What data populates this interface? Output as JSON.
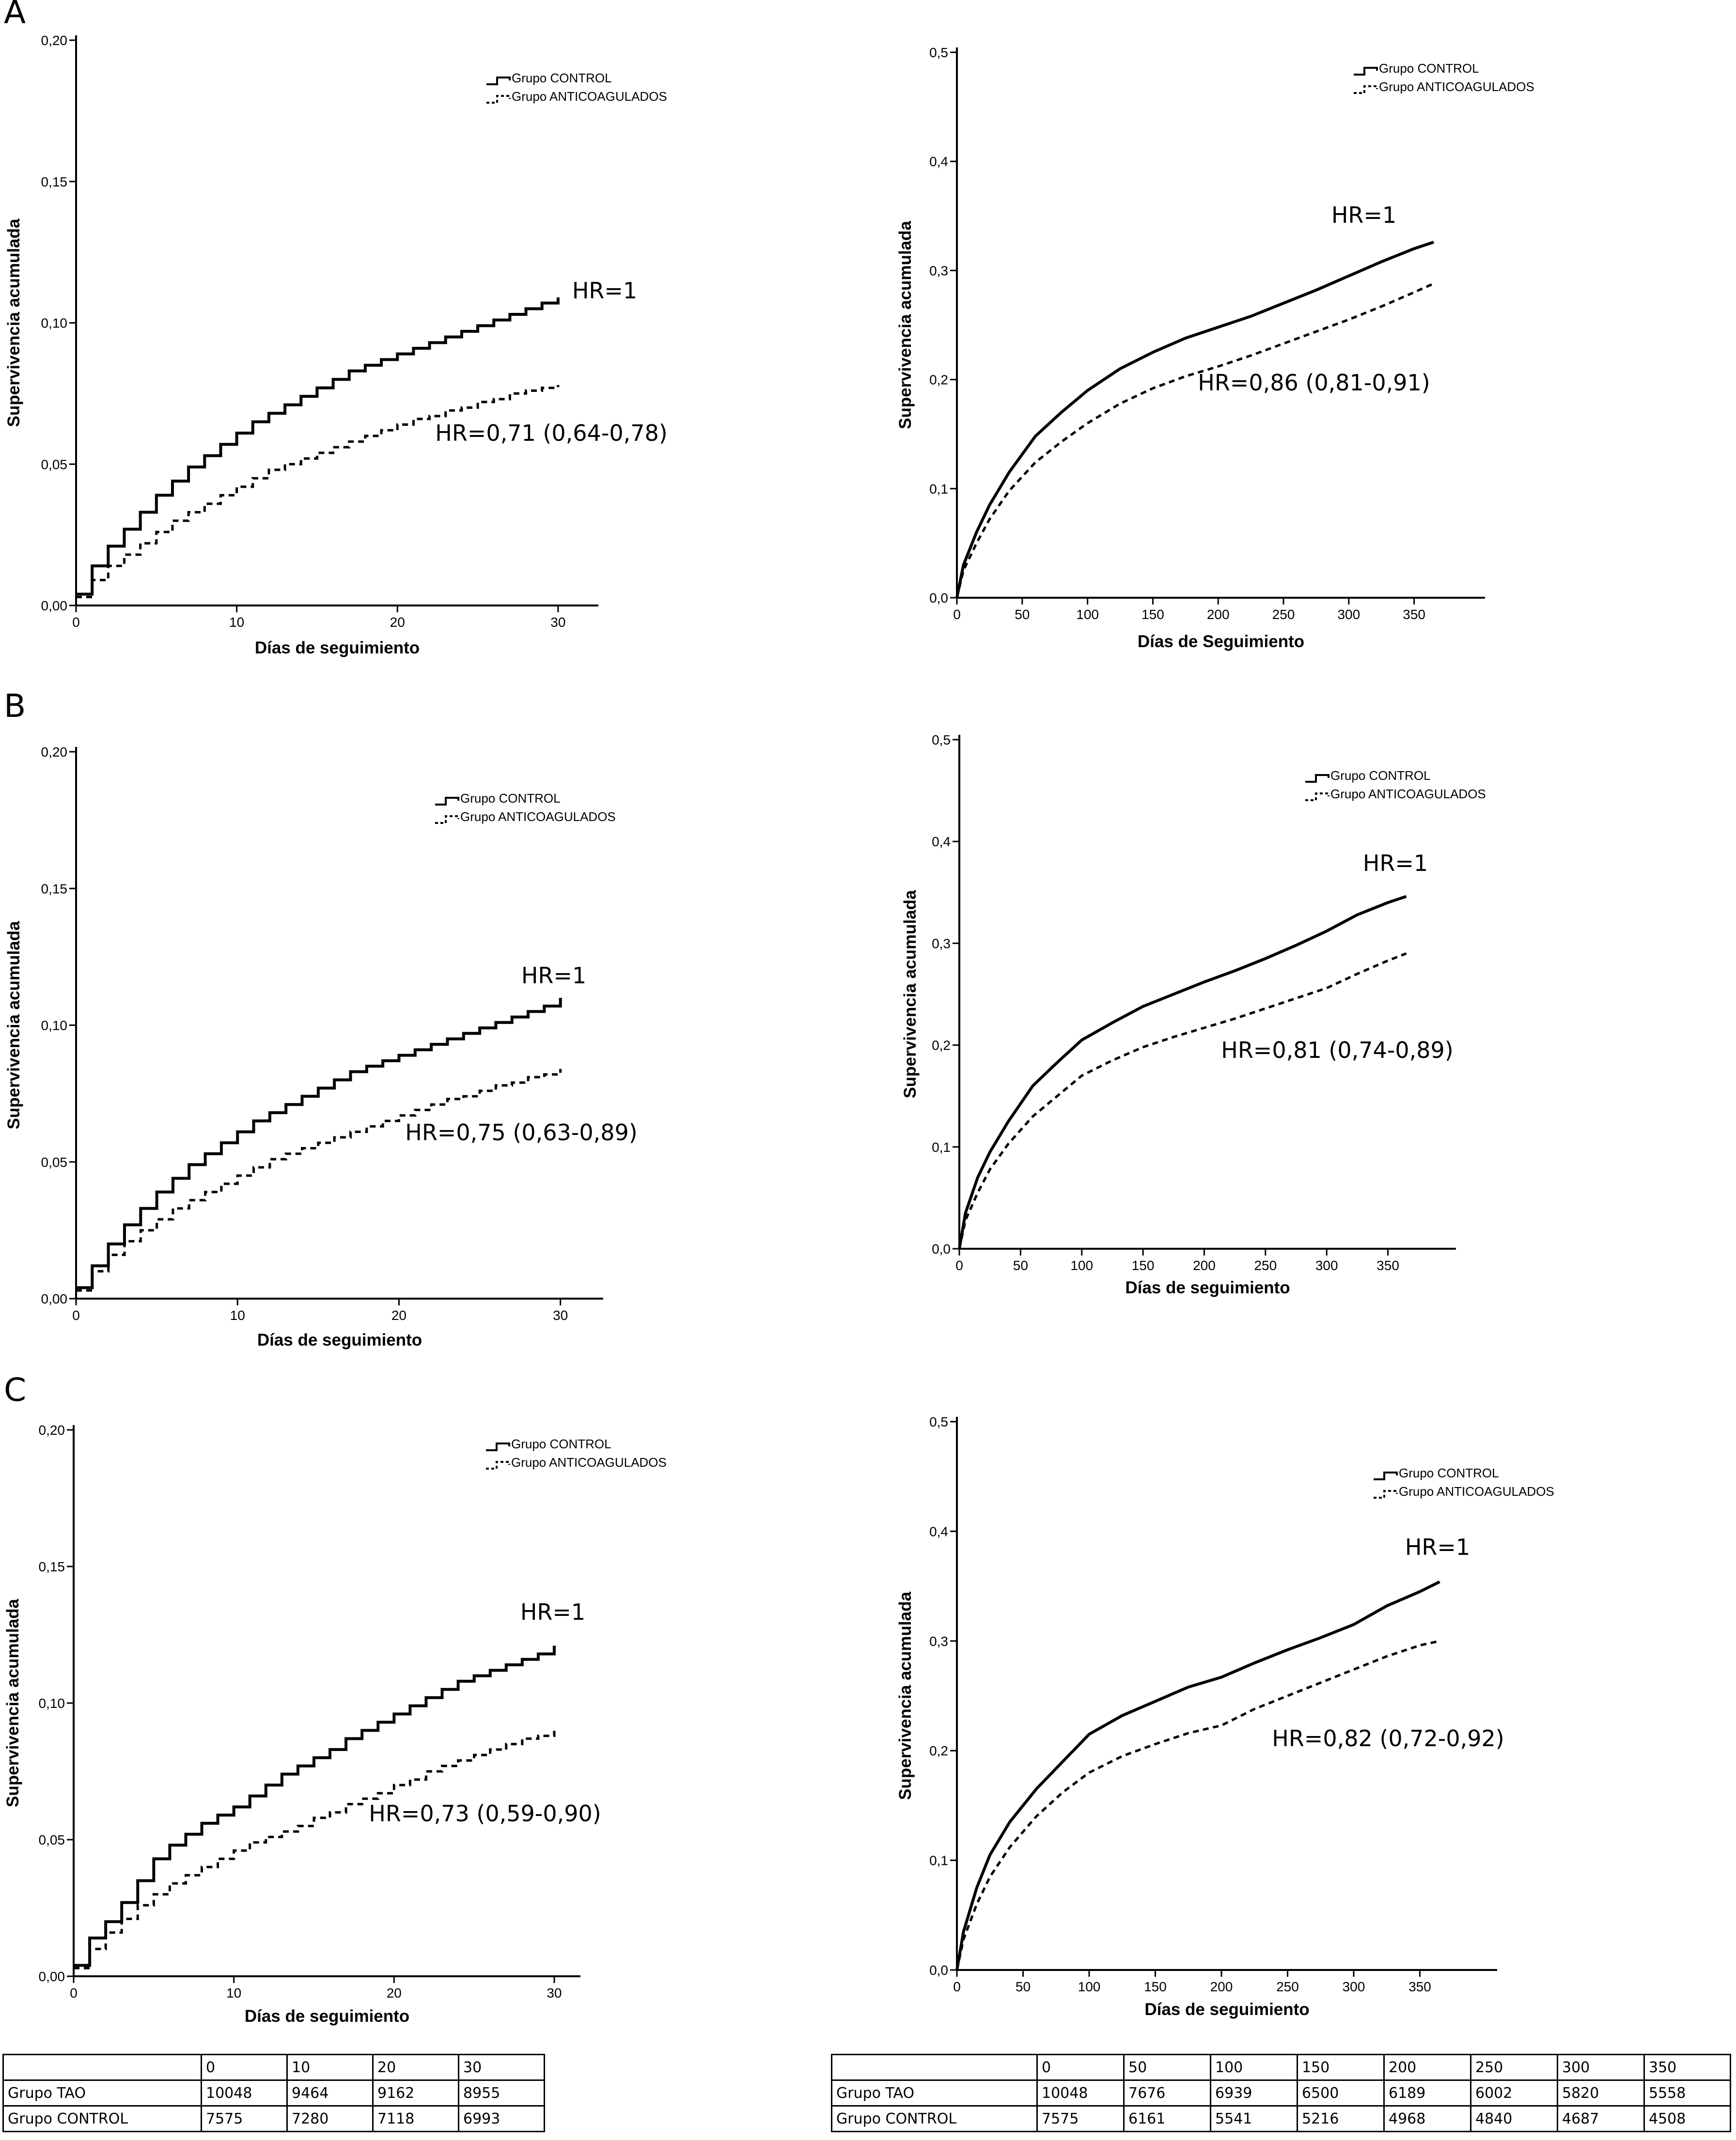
{
  "figure": {
    "panel_letters": [
      "A",
      "B",
      "C"
    ]
  },
  "chart_data": [
    {
      "type": "line",
      "step": true,
      "panel": "A",
      "xlabel": "Días de seguimiento",
      "ylabel": "Supervivencia acumulada",
      "xlim": [
        0,
        31
      ],
      "ylim": [
        0,
        0.2
      ],
      "xticks": [
        0,
        10,
        20,
        30
      ],
      "xtick_labels": [
        "0",
        "10",
        "20",
        "30"
      ],
      "yticks": [
        0,
        0.05,
        0.1,
        0.15,
        0.2
      ],
      "ytick_labels": [
        "0,00",
        "0,05",
        "0,10",
        "0,15",
        "0,20"
      ],
      "legend": [
        "Grupo CONTROL",
        "Grupo ANTICOAGULADOS"
      ],
      "legend_position": "top-right",
      "series": [
        {
          "name": "Grupo CONTROL",
          "style": "solid",
          "label": "HR=1",
          "x": [
            0,
            1,
            2,
            3,
            4,
            5,
            6,
            7,
            8,
            9,
            10,
            11,
            12,
            13,
            14,
            15,
            16,
            17,
            18,
            19,
            20,
            21,
            22,
            23,
            24,
            25,
            26,
            27,
            28,
            29,
            30
          ],
          "y": [
            0.004,
            0.014,
            0.021,
            0.027,
            0.033,
            0.039,
            0.044,
            0.049,
            0.053,
            0.057,
            0.061,
            0.065,
            0.068,
            0.071,
            0.074,
            0.077,
            0.08,
            0.083,
            0.085,
            0.087,
            0.089,
            0.091,
            0.093,
            0.095,
            0.097,
            0.099,
            0.101,
            0.103,
            0.105,
            0.107,
            0.109
          ]
        },
        {
          "name": "Grupo ANTICOAGULADOS",
          "style": "dashed",
          "label": "HR=0,71 (0,64-0,78)",
          "x": [
            0,
            1,
            2,
            3,
            4,
            5,
            6,
            7,
            8,
            9,
            10,
            11,
            12,
            13,
            14,
            15,
            16,
            17,
            18,
            19,
            20,
            21,
            22,
            23,
            24,
            25,
            26,
            27,
            28,
            29,
            30
          ],
          "y": [
            0.003,
            0.009,
            0.014,
            0.018,
            0.022,
            0.026,
            0.03,
            0.033,
            0.036,
            0.039,
            0.042,
            0.045,
            0.048,
            0.05,
            0.052,
            0.054,
            0.056,
            0.058,
            0.06,
            0.062,
            0.064,
            0.066,
            0.067,
            0.069,
            0.07,
            0.072,
            0.073,
            0.075,
            0.076,
            0.077,
            0.078
          ]
        }
      ]
    },
    {
      "type": "line",
      "step": false,
      "panel": "A",
      "xlabel": "Días de Seguimiento",
      "ylabel": "Supervivencia acumulada",
      "xlim": [
        0,
        385
      ],
      "ylim": [
        0,
        0.5
      ],
      "xticks": [
        0,
        50,
        100,
        150,
        200,
        250,
        300,
        350
      ],
      "xtick_labels": [
        "0",
        "50",
        "100",
        "150",
        "200",
        "250",
        "300",
        "350"
      ],
      "yticks": [
        0,
        0.1,
        0.2,
        0.3,
        0.4,
        0.5
      ],
      "ytick_labels": [
        "0,0",
        "0,1",
        "0,2",
        "0,3",
        "0,4",
        "0,5"
      ],
      "legend": [
        "Grupo CONTROL",
        "Grupo ANTICOAGULADOS"
      ],
      "legend_position": "top-right",
      "series": [
        {
          "name": "Grupo CONTROL",
          "style": "solid",
          "label": "HR=1",
          "x": [
            0,
            5,
            15,
            25,
            40,
            60,
            80,
            100,
            125,
            150,
            175,
            200,
            225,
            250,
            275,
            300,
            325,
            350,
            365
          ],
          "y": [
            0,
            0.03,
            0.06,
            0.085,
            0.115,
            0.148,
            0.17,
            0.19,
            0.21,
            0.225,
            0.238,
            0.248,
            0.258,
            0.27,
            0.282,
            0.295,
            0.308,
            0.32,
            0.326
          ]
        },
        {
          "name": "Grupo ANTICOAGULADOS",
          "style": "dashed",
          "label": "HR=0,86 (0,81-0,91)",
          "x": [
            0,
            5,
            15,
            25,
            40,
            60,
            80,
            100,
            125,
            150,
            175,
            200,
            225,
            250,
            275,
            300,
            325,
            350,
            365
          ],
          "y": [
            0,
            0.025,
            0.05,
            0.072,
            0.098,
            0.124,
            0.143,
            0.16,
            0.178,
            0.192,
            0.203,
            0.212,
            0.222,
            0.233,
            0.244,
            0.255,
            0.267,
            0.28,
            0.288
          ]
        }
      ]
    },
    {
      "type": "line",
      "step": true,
      "panel": "B",
      "xlabel": "Días de seguimiento",
      "ylabel": "Supervivencia acumulada",
      "xlim": [
        0,
        31
      ],
      "ylim": [
        0,
        0.2
      ],
      "xticks": [
        0,
        10,
        20,
        30
      ],
      "xtick_labels": [
        "0",
        "10",
        "20",
        "30"
      ],
      "yticks": [
        0,
        0.05,
        0.1,
        0.15,
        0.2
      ],
      "ytick_labels": [
        "0,00",
        "0,05",
        "0,10",
        "0,15",
        "0,20"
      ],
      "legend": [
        "Grupo CONTROL",
        "Grupo ANTICOAGULADOS"
      ],
      "legend_position": "top-right",
      "series": [
        {
          "name": "Grupo CONTROL",
          "style": "solid",
          "label": "HR=1",
          "x": [
            0,
            1,
            2,
            3,
            4,
            5,
            6,
            7,
            8,
            9,
            10,
            11,
            12,
            13,
            14,
            15,
            16,
            17,
            18,
            19,
            20,
            21,
            22,
            23,
            24,
            25,
            26,
            27,
            28,
            29,
            30
          ],
          "y": [
            0.004,
            0.012,
            0.02,
            0.027,
            0.033,
            0.039,
            0.044,
            0.049,
            0.053,
            0.057,
            0.061,
            0.065,
            0.068,
            0.071,
            0.074,
            0.077,
            0.08,
            0.083,
            0.085,
            0.087,
            0.089,
            0.091,
            0.093,
            0.095,
            0.097,
            0.099,
            0.101,
            0.103,
            0.105,
            0.107,
            0.11
          ]
        },
        {
          "name": "Grupo ANTICOAGULADOS",
          "style": "dashed",
          "label": "HR=0,75 (0,63-0,89)",
          "x": [
            0,
            1,
            2,
            3,
            4,
            5,
            6,
            7,
            8,
            9,
            10,
            11,
            12,
            13,
            14,
            15,
            16,
            17,
            18,
            19,
            20,
            21,
            22,
            23,
            24,
            25,
            26,
            27,
            28,
            29,
            30
          ],
          "y": [
            0.003,
            0.01,
            0.016,
            0.021,
            0.025,
            0.029,
            0.033,
            0.036,
            0.039,
            0.042,
            0.045,
            0.048,
            0.051,
            0.053,
            0.055,
            0.057,
            0.059,
            0.061,
            0.063,
            0.065,
            0.067,
            0.069,
            0.071,
            0.073,
            0.074,
            0.076,
            0.078,
            0.079,
            0.081,
            0.082,
            0.084
          ]
        }
      ]
    },
    {
      "type": "line",
      "step": false,
      "panel": "B",
      "xlabel": "Días de seguimiento",
      "ylabel": "Supervivencia acumulada",
      "xlim": [
        0,
        385
      ],
      "ylim": [
        0,
        0.5
      ],
      "xticks": [
        0,
        50,
        100,
        150,
        200,
        250,
        300,
        350
      ],
      "xtick_labels": [
        "0",
        "50",
        "100",
        "150",
        "200",
        "250",
        "300",
        "350"
      ],
      "yticks": [
        0,
        0.1,
        0.2,
        0.3,
        0.4,
        0.5
      ],
      "ytick_labels": [
        "0,0",
        "0,1",
        "0,2",
        "0,3",
        "0,4",
        "0,5"
      ],
      "legend": [
        "Grupo CONTROL",
        "Grupo ANTICOAGULADOS"
      ],
      "legend_position": "top-right",
      "series": [
        {
          "name": "Grupo CONTROL",
          "style": "solid",
          "label": "HR=1",
          "x": [
            0,
            5,
            15,
            25,
            40,
            60,
            80,
            100,
            125,
            150,
            175,
            200,
            225,
            250,
            275,
            300,
            325,
            350,
            365
          ],
          "y": [
            0,
            0.035,
            0.07,
            0.095,
            0.125,
            0.16,
            0.183,
            0.205,
            0.222,
            0.238,
            0.25,
            0.262,
            0.273,
            0.285,
            0.298,
            0.312,
            0.328,
            0.34,
            0.346
          ]
        },
        {
          "name": "Grupo ANTICOAGULADOS",
          "style": "dashed",
          "label": "HR=0,81 (0,74-0,89)",
          "x": [
            0,
            5,
            15,
            25,
            40,
            60,
            80,
            100,
            125,
            150,
            175,
            200,
            225,
            250,
            275,
            300,
            325,
            350,
            365
          ],
          "y": [
            0,
            0.028,
            0.055,
            0.078,
            0.103,
            0.13,
            0.15,
            0.17,
            0.185,
            0.198,
            0.208,
            0.217,
            0.226,
            0.236,
            0.246,
            0.256,
            0.27,
            0.283,
            0.29
          ]
        }
      ]
    },
    {
      "type": "line",
      "step": true,
      "panel": "C",
      "xlabel": "Días de seguimiento",
      "ylabel": "Supervivencia acumulada",
      "xlim": [
        0,
        31
      ],
      "ylim": [
        0,
        0.2
      ],
      "xticks": [
        0,
        10,
        20,
        30
      ],
      "xtick_labels": [
        "0",
        "10",
        "20",
        "30"
      ],
      "yticks": [
        0,
        0.05,
        0.1,
        0.15,
        0.2
      ],
      "ytick_labels": [
        "0,00",
        "0,05",
        "0,10",
        "0,15",
        "0,20"
      ],
      "legend": [
        "Grupo CONTROL",
        "Grupo ANTICOAGULADOS"
      ],
      "legend_position": "top-right",
      "series": [
        {
          "name": "Grupo CONTROL",
          "style": "solid",
          "label": "HR=1",
          "x": [
            0,
            1,
            2,
            3,
            4,
            5,
            6,
            7,
            8,
            9,
            10,
            11,
            12,
            13,
            14,
            15,
            16,
            17,
            18,
            19,
            20,
            21,
            22,
            23,
            24,
            25,
            26,
            27,
            28,
            29,
            30
          ],
          "y": [
            0.004,
            0.014,
            0.02,
            0.027,
            0.035,
            0.043,
            0.048,
            0.052,
            0.056,
            0.059,
            0.062,
            0.066,
            0.07,
            0.074,
            0.077,
            0.08,
            0.083,
            0.087,
            0.09,
            0.093,
            0.096,
            0.099,
            0.102,
            0.105,
            0.108,
            0.11,
            0.112,
            0.114,
            0.116,
            0.118,
            0.121
          ]
        },
        {
          "name": "Grupo ANTICOAGULADOS",
          "style": "dashed",
          "label": "HR=0,73 (0,59-0,90)",
          "x": [
            0,
            1,
            2,
            3,
            4,
            5,
            6,
            7,
            8,
            9,
            10,
            11,
            12,
            13,
            14,
            15,
            16,
            17,
            18,
            19,
            20,
            21,
            22,
            23,
            24,
            25,
            26,
            27,
            28,
            29,
            30
          ],
          "y": [
            0.003,
            0.01,
            0.016,
            0.021,
            0.026,
            0.03,
            0.034,
            0.037,
            0.04,
            0.043,
            0.046,
            0.049,
            0.051,
            0.053,
            0.055,
            0.058,
            0.06,
            0.063,
            0.065,
            0.067,
            0.07,
            0.072,
            0.075,
            0.077,
            0.079,
            0.081,
            0.083,
            0.085,
            0.087,
            0.088,
            0.09
          ]
        }
      ]
    },
    {
      "type": "line",
      "step": false,
      "panel": "C",
      "xlabel": "Días de seguimiento",
      "ylabel": "Supervivencia acumulada",
      "xlim": [
        0,
        385
      ],
      "ylim": [
        0,
        0.5
      ],
      "xticks": [
        0,
        50,
        100,
        150,
        200,
        250,
        300,
        350
      ],
      "xtick_labels": [
        "0",
        "50",
        "100",
        "150",
        "200",
        "250",
        "300",
        "350"
      ],
      "yticks": [
        0,
        0.1,
        0.2,
        0.3,
        0.4,
        0.5
      ],
      "ytick_labels": [
        "0,0",
        "0,1",
        "0,2",
        "0,3",
        "0,4",
        "0,5"
      ],
      "legend": [
        "Grupo CONTROL",
        "Grupo ANTICOAGULADOS"
      ],
      "legend_position": "top-right",
      "series": [
        {
          "name": "Grupo CONTROL",
          "style": "solid",
          "label": "HR=1",
          "x": [
            0,
            5,
            15,
            25,
            40,
            60,
            80,
            100,
            125,
            150,
            175,
            200,
            225,
            250,
            275,
            300,
            325,
            350,
            365
          ],
          "y": [
            0,
            0.035,
            0.075,
            0.105,
            0.135,
            0.165,
            0.19,
            0.215,
            0.232,
            0.245,
            0.258,
            0.267,
            0.28,
            0.292,
            0.303,
            0.315,
            0.332,
            0.345,
            0.354
          ]
        },
        {
          "name": "Grupo ANTICOAGULADOS",
          "style": "dashed",
          "label": "HR=0,82 (0,72-0,92)",
          "x": [
            0,
            5,
            15,
            25,
            40,
            60,
            80,
            100,
            125,
            150,
            175,
            200,
            225,
            250,
            275,
            300,
            325,
            350,
            365
          ],
          "y": [
            0,
            0.028,
            0.06,
            0.085,
            0.112,
            0.14,
            0.162,
            0.18,
            0.195,
            0.206,
            0.216,
            0.223,
            0.238,
            0.25,
            0.262,
            0.274,
            0.286,
            0.296,
            0.3
          ]
        }
      ]
    }
  ],
  "tables": [
    {
      "header": [
        "",
        "0",
        "10",
        "20",
        "30"
      ],
      "rows": [
        [
          "Grupo TAO",
          "10048",
          "9464",
          "9162",
          "8955"
        ],
        [
          "Grupo CONTROL",
          "7575",
          "7280",
          "7118",
          "6993"
        ]
      ]
    },
    {
      "header": [
        "",
        "0",
        "50",
        "100",
        "150",
        "200",
        "250",
        "300",
        "350"
      ],
      "rows": [
        [
          "Grupo TAO",
          "10048",
          "7676",
          "6939",
          "6500",
          "6189",
          "6002",
          "5820",
          "5558"
        ],
        [
          "Grupo CONTROL",
          "7575",
          "6161",
          "5541",
          "5216",
          "4968",
          "4840",
          "4687",
          "4508"
        ]
      ]
    }
  ]
}
